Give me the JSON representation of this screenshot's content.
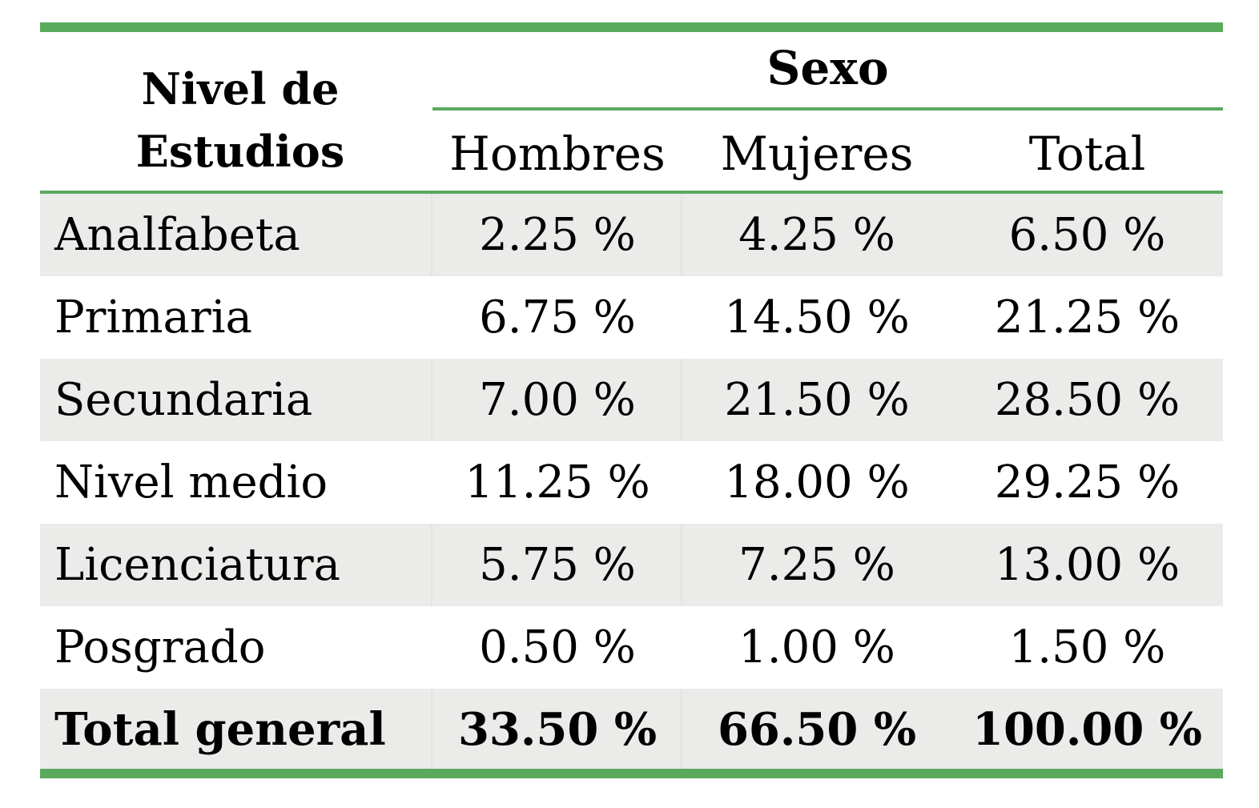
{
  "header": {
    "nivel_line1": "Nivel de",
    "nivel_line2": "Estudios",
    "sexo": "Sexo",
    "hombres": "Hombres",
    "mujeres": "Mujeres",
    "total": "Total"
  },
  "rows": [
    {
      "label": "Analfabeta",
      "hombres": "2.25 %",
      "mujeres": "4.25 %",
      "total": "6.50 %"
    },
    {
      "label": "Primaria",
      "hombres": "6.75 %",
      "mujeres": "14.50 %",
      "total": "21.25 %"
    },
    {
      "label": "Secundaria",
      "hombres": "7.00 %",
      "mujeres": "21.50 %",
      "total": "28.50 %"
    },
    {
      "label": "Nivel medio",
      "hombres": "11.25 %",
      "mujeres": "18.00 %",
      "total": "29.25 %"
    },
    {
      "label": "Licenciatura",
      "hombres": "5.75 %",
      "mujeres": "7.25 %",
      "total": "13.00 %"
    },
    {
      "label": "Posgrado",
      "hombres": "0.50 %",
      "mujeres": "1.00 %",
      "total": "1.50 %"
    }
  ],
  "total_row": {
    "label": "Total general",
    "hombres": "33.50 %",
    "mujeres": "66.50 %",
    "total": "100.00 %"
  },
  "colors": {
    "rule": "#5aaa5e",
    "shade": "#ebebea"
  }
}
